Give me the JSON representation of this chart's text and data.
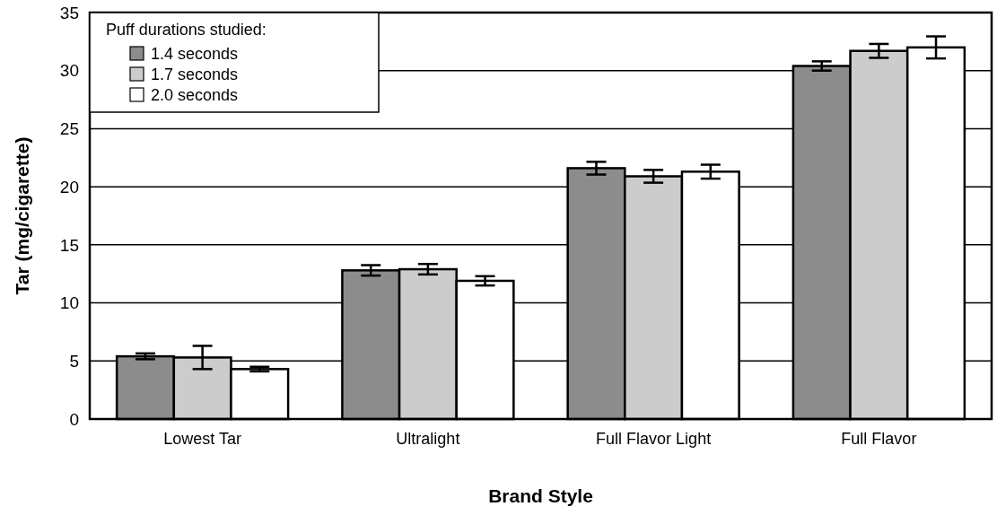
{
  "chart_data": {
    "type": "bar",
    "xlabel": "Brand Style",
    "ylabel": "Tar (mg/cigarette)",
    "categories": [
      "Lowest Tar",
      "Ultralight",
      "Full Flavor Light",
      "Full Flavor"
    ],
    "series": [
      {
        "name": "1.4 seconds",
        "color": "#8c8c8c",
        "values": [
          5.4,
          12.8,
          21.6,
          30.4
        ],
        "errors": [
          0.25,
          0.45,
          0.55,
          0.4
        ]
      },
      {
        "name": "1.7 seconds",
        "color": "#cccccc",
        "values": [
          5.3,
          12.9,
          20.9,
          31.7
        ],
        "errors": [
          1.0,
          0.45,
          0.55,
          0.6
        ]
      },
      {
        "name": "2.0 seconds",
        "color": "#ffffff",
        "values": [
          4.3,
          11.9,
          21.3,
          32.0
        ],
        "errors": [
          0.2,
          0.4,
          0.6,
          0.95
        ]
      }
    ],
    "ylim": [
      0,
      35
    ],
    "yticks": [
      0,
      5,
      10,
      15,
      20,
      25,
      30,
      35
    ],
    "grid": "y",
    "legend": "top left",
    "legend_title": "Puff durations studied:"
  }
}
